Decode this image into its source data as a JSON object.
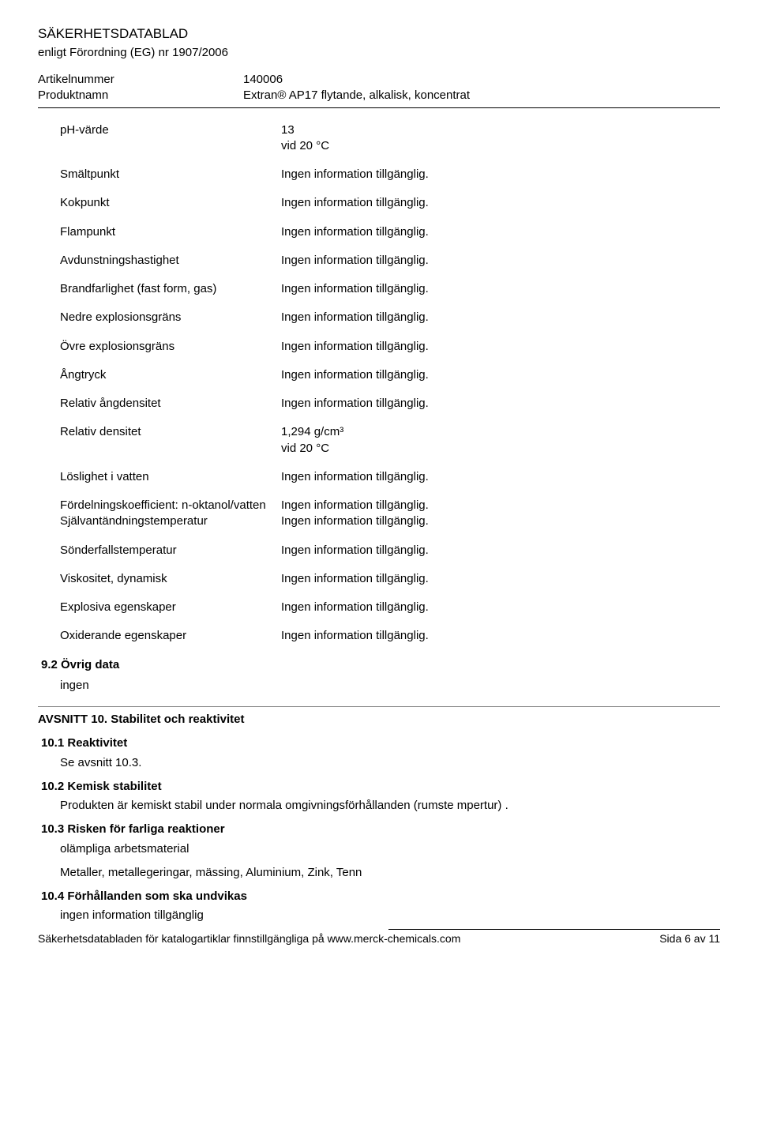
{
  "header": {
    "title": "SÄKERHETSDATABLAD",
    "subtitle": "enligt Förordning (EG) nr 1907/2006",
    "article_label": "Artikelnummer",
    "article_value": "140006",
    "product_label": "Produktnamn",
    "product_value": "Extran® AP17 flytande, alkalisk, koncentrat"
  },
  "properties": [
    {
      "label": "pH-värde",
      "value": " 13",
      "sub": "vid 20 °C"
    },
    {
      "label": "Smältpunkt",
      "value": "Ingen information tillgänglig."
    },
    {
      "label": "Kokpunkt",
      "value": "Ingen information tillgänglig."
    },
    {
      "label": "Flampunkt",
      "value": "Ingen information tillgänglig."
    },
    {
      "label": "Avdunstningshastighet",
      "value": "Ingen information tillgänglig."
    },
    {
      "label": "Brandfarlighet (fast form, gas)",
      "value": "Ingen information tillgänglig."
    },
    {
      "label": "Nedre explosionsgräns",
      "value": "Ingen information tillgänglig."
    },
    {
      "label": "Övre explosionsgräns",
      "value": "Ingen information tillgänglig."
    },
    {
      "label": "Ångtryck",
      "value": "Ingen information tillgänglig."
    },
    {
      "label": "Relativ ångdensitet",
      "value": "Ingen information tillgänglig."
    },
    {
      "label": "Relativ densitet",
      "value": "1,294 g/cm³",
      "sub": "vid 20 °C"
    },
    {
      "label": "Löslighet i vatten",
      "value": "Ingen information tillgänglig."
    },
    {
      "label": "Fördelningskoefficient: n-oktanol/vatten",
      "value": "Ingen information tillgänglig."
    },
    {
      "label": "Självantändningstemperatur",
      "value": "Ingen information tillgänglig."
    },
    {
      "label": "Sönderfallstemperatur",
      "value": "Ingen information tillgänglig."
    },
    {
      "label": "Viskositet, dynamisk",
      "value": "Ingen information tillgänglig."
    },
    {
      "label": "Explosiva egenskaper",
      "value": "Ingen information tillgänglig."
    },
    {
      "label": "Oxiderande egenskaper",
      "value": "Ingen information tillgänglig."
    }
  ],
  "section92": {
    "heading": "9.2 Övrig data",
    "body": "ingen"
  },
  "section10": {
    "title": "AVSNITT 10. Stabilitet och reaktivitet",
    "s1_heading": "10.1 Reaktivitet",
    "s1_body": "Se avsnitt 10.3.",
    "s2_heading": "10.2 Kemisk stabilitet",
    "s2_body": "Produkten är kemiskt stabil under normala omgivningsförhållanden (rumste mpertur) .",
    "s3_heading": "10.3 Risken för farliga reaktioner",
    "s3_line1": "olämpliga arbetsmaterial",
    "s3_line2": "Metaller, metallegeringar, mässing, Aluminium, Zink, Tenn",
    "s4_heading": "10.4 Förhållanden som ska undvikas",
    "s4_body": "ingen information tillgänglig"
  },
  "footer": {
    "left": "Säkerhetsdatabladen för katalogartiklar finnstillgängliga på www.merck-chemicals.com",
    "right": "Sida 6 av 11"
  }
}
